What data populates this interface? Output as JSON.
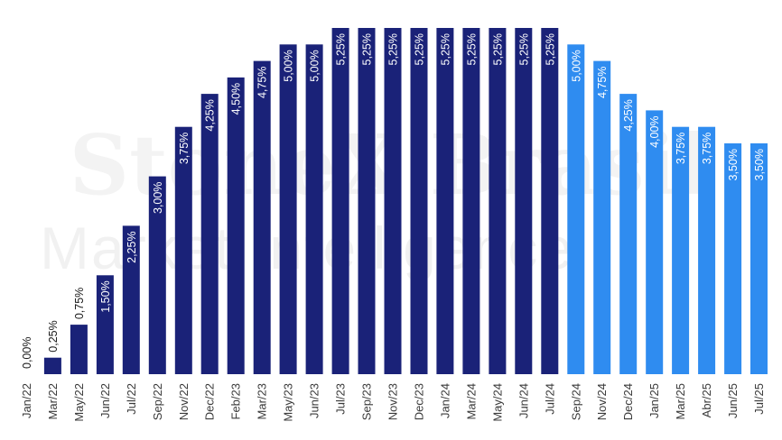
{
  "watermark": {
    "brand": "StoneX Brasil",
    "tagline": "Market Intelligence"
  },
  "chart_data": {
    "type": "bar",
    "categories": [
      "Jan/22",
      "Mar/22",
      "May/22",
      "Jun/22",
      "Jul/22",
      "Sep/22",
      "Nov/22",
      "Dec/22",
      "Feb/23",
      "Mar/23",
      "May/23",
      "Jun/23",
      "Jul/23",
      "Sep/23",
      "Nov/23",
      "Dec/23",
      "Jan/24",
      "Mar/24",
      "May/24",
      "Jun/24",
      "Jul/24",
      "Sep/24",
      "Nov/24",
      "Dec/24",
      "Jan/25",
      "Mar/25",
      "Abr/25",
      "Jun/25",
      "Jul/25"
    ],
    "values": [
      0.0,
      0.25,
      0.75,
      1.5,
      2.25,
      3.0,
      3.75,
      4.25,
      4.5,
      4.75,
      5.0,
      5.0,
      5.25,
      5.25,
      5.25,
      5.25,
      5.25,
      5.25,
      5.25,
      5.25,
      5.25,
      5.0,
      4.75,
      4.25,
      4.0,
      3.75,
      3.75,
      3.5,
      3.5
    ],
    "data_labels": [
      "0,00%",
      "0,25%",
      "0,75%",
      "1,50%",
      "2,25%",
      "3,00%",
      "3,75%",
      "4,25%",
      "4,50%",
      "4,75%",
      "5,00%",
      "5,00%",
      "5,25%",
      "5,25%",
      "5,25%",
      "5,25%",
      "5,25%",
      "5,25%",
      "5,25%",
      "5,25%",
      "5,25%",
      "5,00%",
      "4,75%",
      "4,25%",
      "4,00%",
      "3,75%",
      "3,75%",
      "3,50%",
      "3,50%"
    ],
    "series_kind": [
      "actual",
      "actual",
      "actual",
      "actual",
      "actual",
      "actual",
      "actual",
      "actual",
      "actual",
      "actual",
      "actual",
      "actual",
      "actual",
      "actual",
      "actual",
      "actual",
      "actual",
      "actual",
      "actual",
      "actual",
      "actual",
      "projection",
      "projection",
      "projection",
      "projection",
      "projection",
      "projection",
      "projection",
      "projection"
    ],
    "colors": {
      "actual": "#1a2278",
      "projection": "#2f8cf0",
      "label_inside": "#ffffff",
      "label_outside": "#1a1a1a"
    },
    "ylim": [
      0,
      5.25
    ],
    "grid": false,
    "legend": "none",
    "title": "",
    "xlabel": "",
    "ylabel": ""
  }
}
